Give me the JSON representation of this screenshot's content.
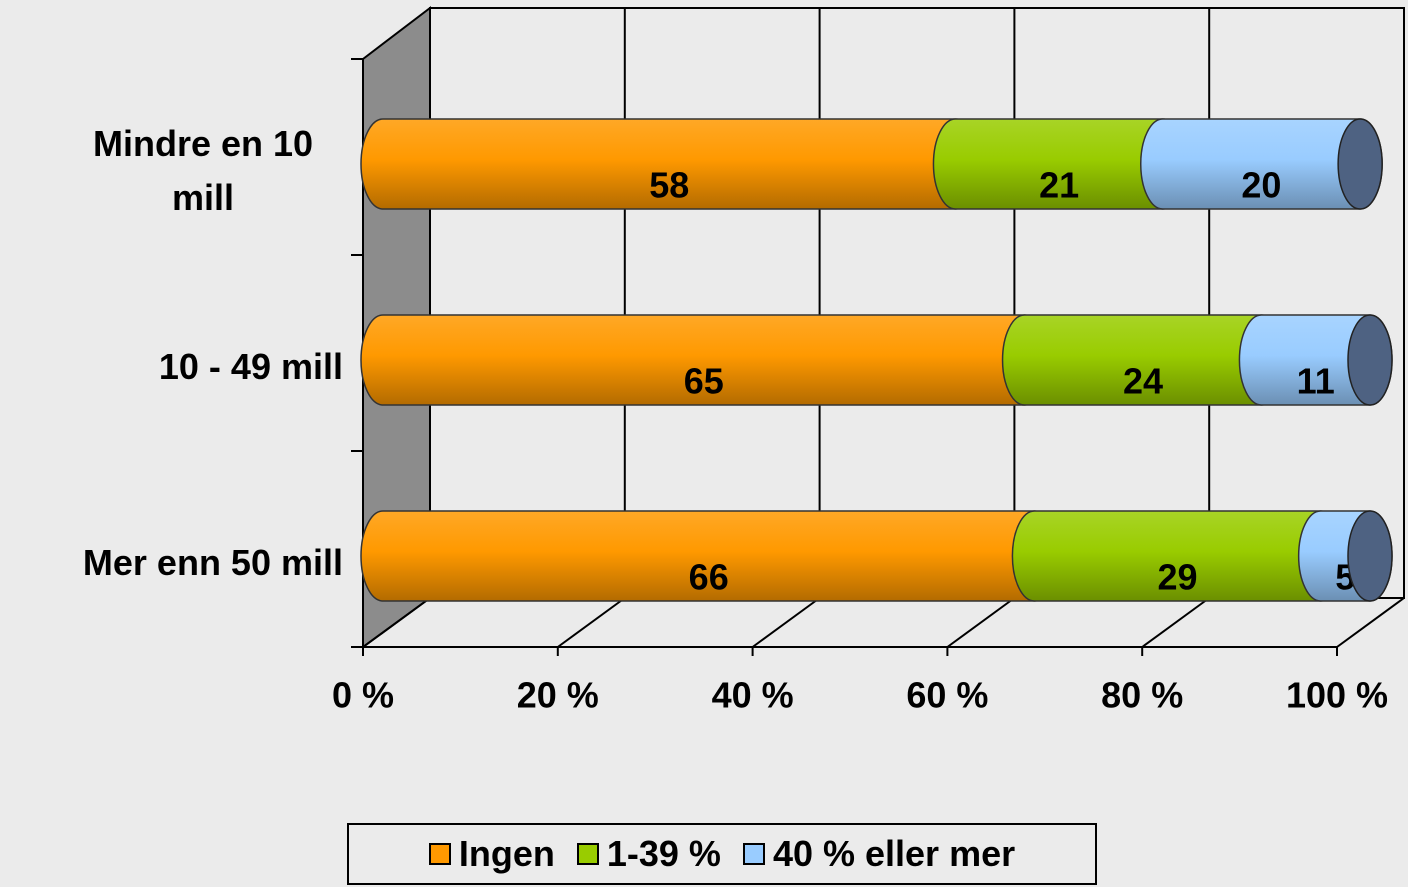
{
  "chart_data": {
    "type": "stacked-bar-horizontal",
    "categories": [
      "Mindre en 10 mill",
      "10 - 49 mill",
      "Mer enn 50 mill"
    ],
    "series": [
      {
        "name": "Ingen",
        "color": "#ff9900",
        "values": [
          58,
          65,
          66
        ]
      },
      {
        "name": "1-39 %",
        "color": "#99cc00",
        "values": [
          21,
          24,
          29
        ]
      },
      {
        "name": "40 % eller mer",
        "color": "#99ccff",
        "values": [
          20,
          11,
          5
        ]
      }
    ],
    "xlim": [
      0,
      100
    ],
    "xticks": [
      {
        "value": 0,
        "label": "0 %"
      },
      {
        "value": 20,
        "label": "20 %"
      },
      {
        "value": 40,
        "label": "40 %"
      },
      {
        "value": 60,
        "label": "60 %"
      },
      {
        "value": 80,
        "label": "80 %"
      },
      {
        "value": 100,
        "label": "100 %"
      }
    ],
    "grid": true,
    "legend": "bottom"
  }
}
